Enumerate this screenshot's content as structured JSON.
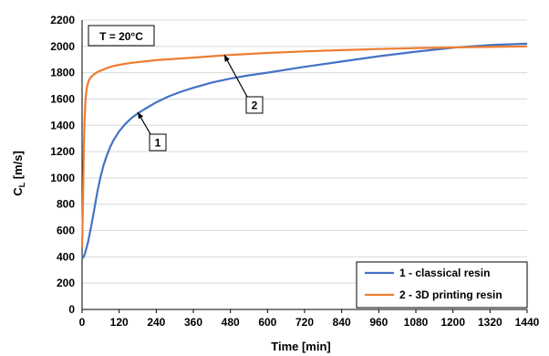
{
  "chart_data": {
    "type": "line",
    "xlabel": "Time [min]",
    "ylabel": "C",
    "ylabel_sub": "L",
    "ylabel_unit": " [m/s]",
    "xlim": [
      0,
      1440
    ],
    "ylim": [
      0,
      2200
    ],
    "x_ticks": [
      0,
      120,
      240,
      360,
      480,
      600,
      720,
      840,
      960,
      1080,
      1200,
      1320,
      1440
    ],
    "y_ticks": [
      0,
      200,
      400,
      600,
      800,
      1000,
      1200,
      1400,
      1600,
      1800,
      2000,
      2200
    ],
    "grid": "horizontal",
    "legend_position": "bottom-right",
    "annotation_condition": "T = 20°C",
    "series": [
      {
        "name": "1 - classical resin",
        "label": "1",
        "color": "#4472C4",
        "x": [
          0,
          5,
          10,
          20,
          30,
          40,
          50,
          60,
          70,
          80,
          90,
          100,
          120,
          140,
          160,
          180,
          200,
          240,
          280,
          320,
          360,
          420,
          480,
          540,
          600,
          720,
          840,
          960,
          1080,
          1200,
          1320,
          1440
        ],
        "y": [
          390,
          400,
          430,
          520,
          640,
          770,
          900,
          1010,
          1100,
          1170,
          1230,
          1280,
          1355,
          1410,
          1455,
          1490,
          1520,
          1575,
          1620,
          1655,
          1685,
          1725,
          1755,
          1780,
          1800,
          1845,
          1885,
          1925,
          1960,
          1990,
          2010,
          2020
        ]
      },
      {
        "name": "2 - 3D printing resin",
        "label": "2",
        "color": "#ED7D31",
        "x": [
          0,
          2,
          4,
          6,
          8,
          10,
          12,
          15,
          20,
          25,
          30,
          40,
          50,
          60,
          80,
          100,
          120,
          160,
          200,
          240,
          300,
          360,
          420,
          480,
          600,
          720,
          840,
          960,
          1080,
          1200,
          1320,
          1440
        ],
        "y": [
          470,
          700,
          1000,
          1250,
          1430,
          1550,
          1620,
          1680,
          1730,
          1755,
          1770,
          1790,
          1805,
          1815,
          1835,
          1850,
          1860,
          1875,
          1885,
          1895,
          1905,
          1915,
          1925,
          1935,
          1950,
          1962,
          1972,
          1980,
          1987,
          1992,
          1996,
          2000
        ]
      }
    ],
    "callouts": [
      {
        "label": "1",
        "series": 0,
        "x": 180,
        "y": 1500
      },
      {
        "label": "2",
        "series": 1,
        "x": 460,
        "y": 1935
      }
    ]
  }
}
